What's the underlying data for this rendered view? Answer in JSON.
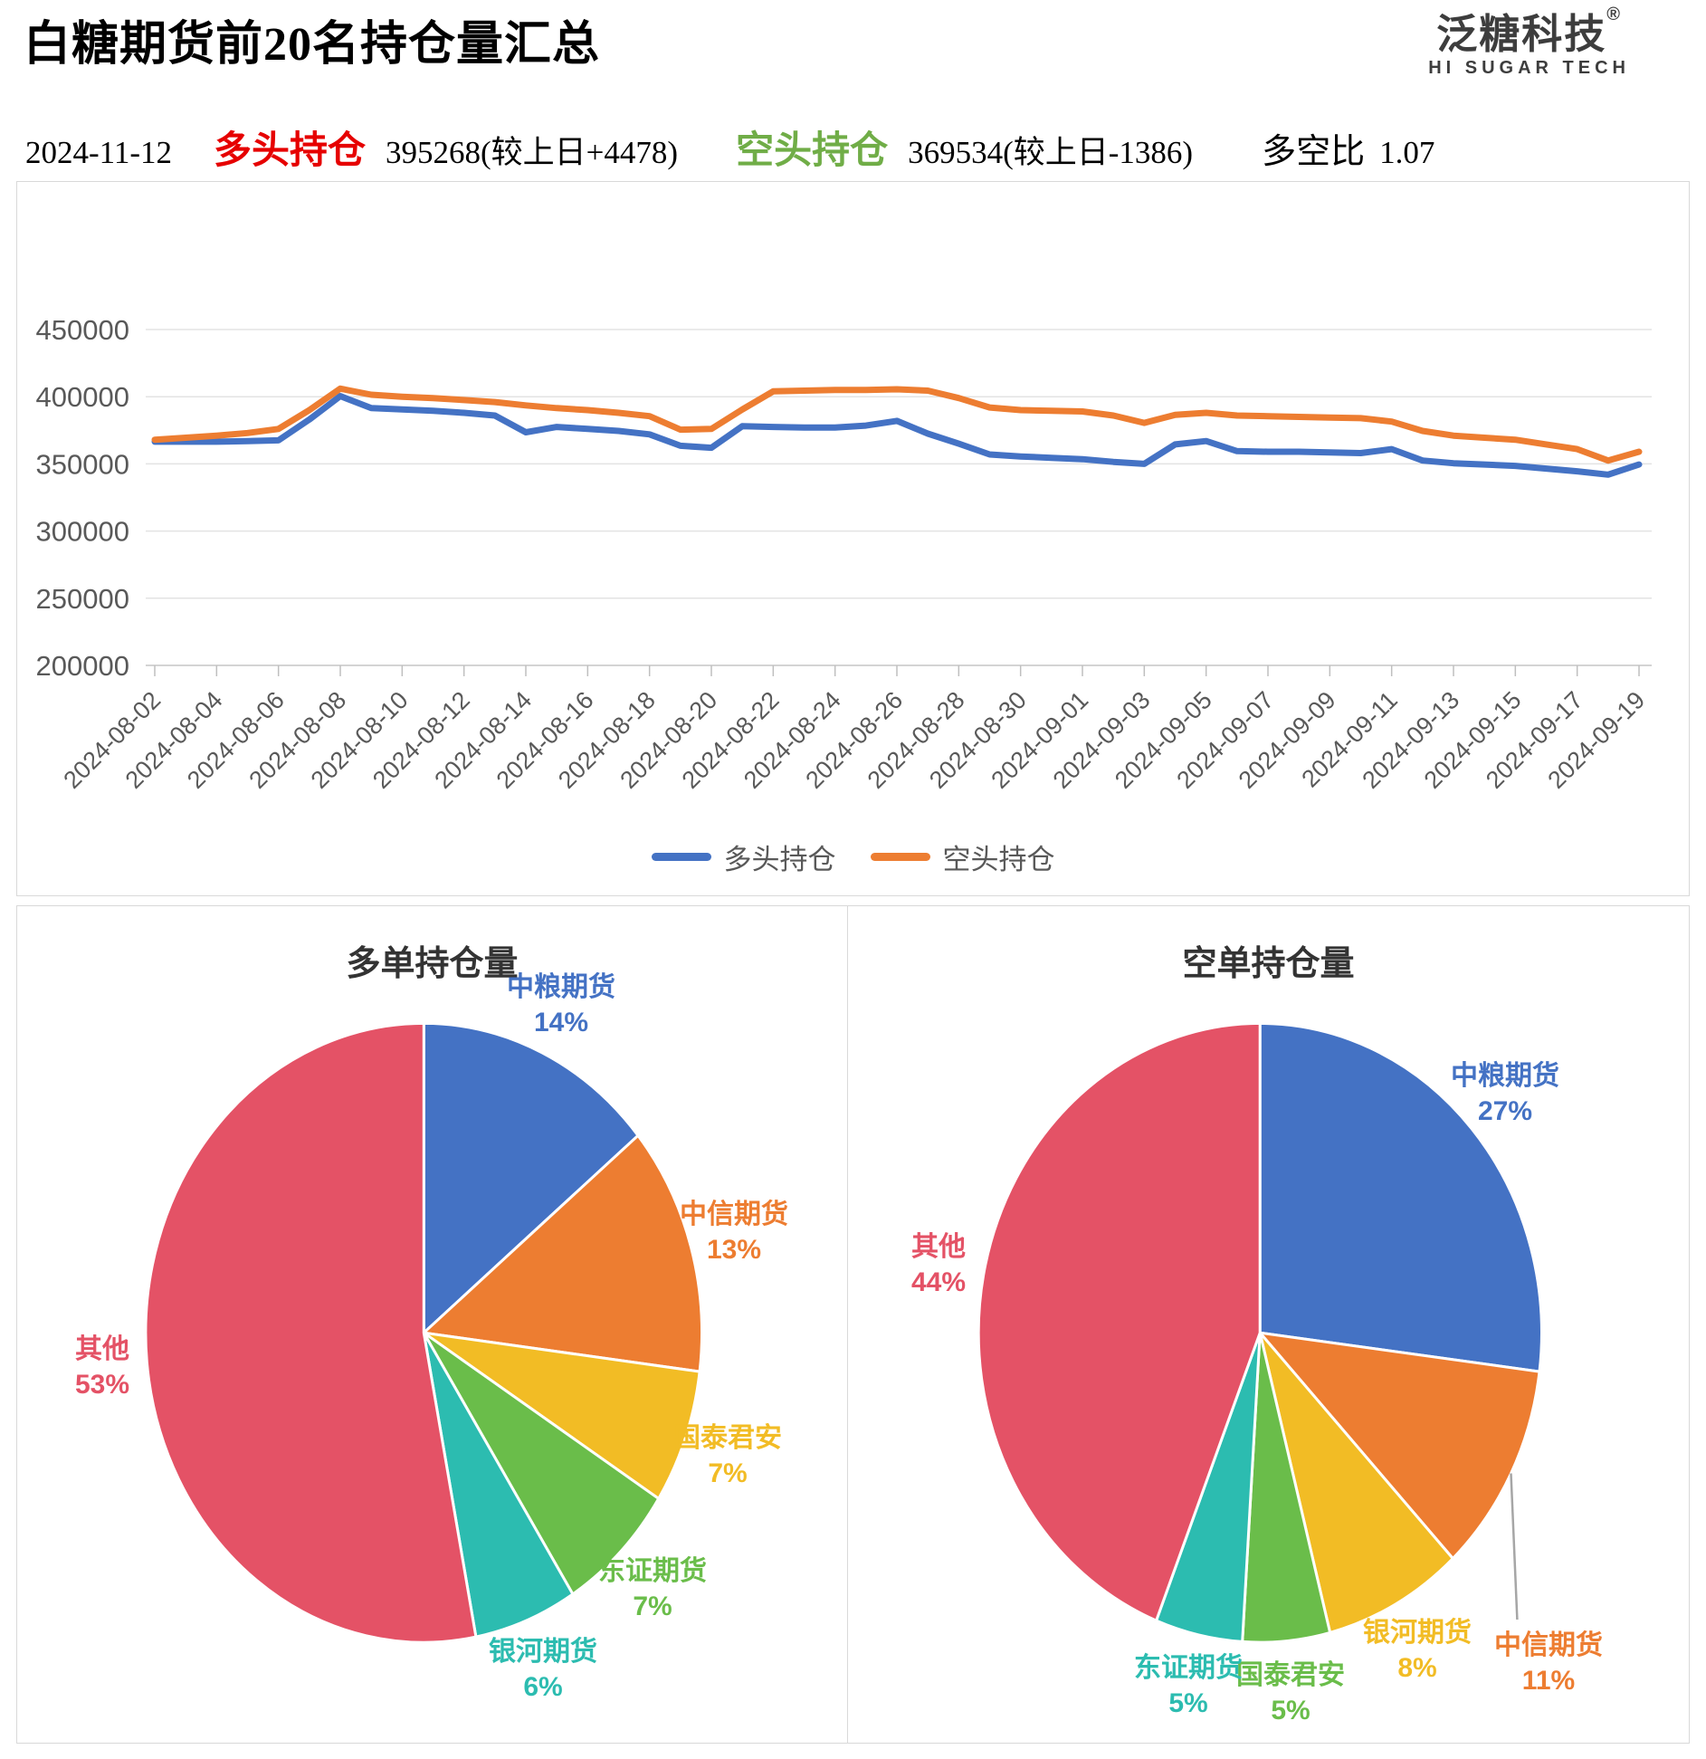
{
  "header": {
    "title": "白糖期货前20名持仓量汇总",
    "logo": {
      "name": "泛糖科技",
      "registered": "®",
      "tagline": "HI SUGAR TECH"
    },
    "date": "2024-11-12",
    "long_label": "多头持仓",
    "long_value": "395268(较上日+4478)",
    "short_label": "空头持仓",
    "short_value": "369534(较上日-1386)",
    "ratio_label": "多空比",
    "ratio_value": "1.07",
    "colors": {
      "long_label": "#e60000",
      "short_label": "#70ad47",
      "text": "#000000"
    }
  },
  "chart_data": [
    {
      "type": "line",
      "title": "",
      "x": [
        "2024-08-02",
        "2024-08-03",
        "2024-08-04",
        "2024-08-05",
        "2024-08-06",
        "2024-08-07",
        "2024-08-08",
        "2024-08-09",
        "2024-08-10",
        "2024-08-11",
        "2024-08-12",
        "2024-08-13",
        "2024-08-14",
        "2024-08-15",
        "2024-08-16",
        "2024-08-17",
        "2024-08-18",
        "2024-08-19",
        "2024-08-20",
        "2024-08-21",
        "2024-08-22",
        "2024-08-23",
        "2024-08-24",
        "2024-08-25",
        "2024-08-26",
        "2024-08-27",
        "2024-08-28",
        "2024-08-29",
        "2024-08-30",
        "2024-08-31",
        "2024-09-01",
        "2024-09-02",
        "2024-09-03",
        "2024-09-04",
        "2024-09-05",
        "2024-09-06",
        "2024-09-07",
        "2024-09-08",
        "2024-09-09",
        "2024-09-10",
        "2024-09-11",
        "2024-09-12",
        "2024-09-13",
        "2024-09-14",
        "2024-09-15",
        "2024-09-16",
        "2024-09-17",
        "2024-09-18",
        "2024-09-19"
      ],
      "x_label_every": 2,
      "series": [
        {
          "name": "多头持仓",
          "color": "#4472C4",
          "values": [
            366500,
            366500,
            366500,
            367000,
            367500,
            383000,
            400500,
            391500,
            390500,
            389500,
            388000,
            386000,
            373500,
            377500,
            376000,
            374500,
            372000,
            363500,
            362000,
            378000,
            377500,
            377000,
            377000,
            378500,
            382000,
            372500,
            365000,
            357000,
            355500,
            354500,
            353500,
            351500,
            350000,
            364500,
            367000,
            359500,
            359000,
            359000,
            358500,
            358000,
            361000,
            352500,
            350500,
            349500,
            348500,
            346500,
            344500,
            342000,
            349500
          ]
        },
        {
          "name": "空头持仓",
          "color": "#ED7D31",
          "values": [
            368000,
            369500,
            371000,
            373000,
            376000,
            390000,
            406000,
            401500,
            400000,
            399000,
            397500,
            396000,
            393500,
            391500,
            390000,
            388000,
            385500,
            375500,
            376000,
            390500,
            404000,
            404500,
            405000,
            405000,
            405500,
            404500,
            399000,
            392000,
            390000,
            389500,
            389000,
            386000,
            380500,
            386500,
            388000,
            386000,
            385500,
            385000,
            384500,
            384000,
            381500,
            374500,
            371000,
            369500,
            368000,
            364500,
            361000,
            352500,
            359000
          ]
        }
      ],
      "ylim": [
        200000,
        450000
      ],
      "yticks": [
        200000,
        250000,
        300000,
        350000,
        400000,
        450000
      ],
      "grid": true,
      "legend_position": "bottom"
    },
    {
      "type": "pie",
      "title": "多单持仓量",
      "slices": [
        {
          "label": "中粮期货",
          "pct": 14,
          "color": "#4472C4"
        },
        {
          "label": "中信期货",
          "pct": 13,
          "color": "#ED7D31"
        },
        {
          "label": "国泰君安",
          "pct": 7,
          "color": "#F2BC25"
        },
        {
          "label": "东证期货",
          "pct": 7,
          "color": "#6ABD4A"
        },
        {
          "label": "银河期货",
          "pct": 6,
          "color": "#2CBCB0"
        },
        {
          "label": "其他",
          "pct": 53,
          "color": "#E45266"
        }
      ],
      "start_angle_deg": 0,
      "direction": "clockwise"
    },
    {
      "type": "pie",
      "title": "空单持仓量",
      "slices": [
        {
          "label": "中粮期货",
          "pct": 27,
          "color": "#4472C4"
        },
        {
          "label": "中信期货",
          "pct": 11,
          "color": "#ED7D31",
          "leader_line": true
        },
        {
          "label": "银河期货",
          "pct": 8,
          "color": "#F2BC25"
        },
        {
          "label": "国泰君安",
          "pct": 5,
          "color": "#6ABD4A"
        },
        {
          "label": "东证期货",
          "pct": 5,
          "color": "#2CBCB0"
        },
        {
          "label": "其他",
          "pct": 44,
          "color": "#E45266"
        }
      ],
      "start_angle_deg": 0,
      "direction": "clockwise"
    }
  ]
}
